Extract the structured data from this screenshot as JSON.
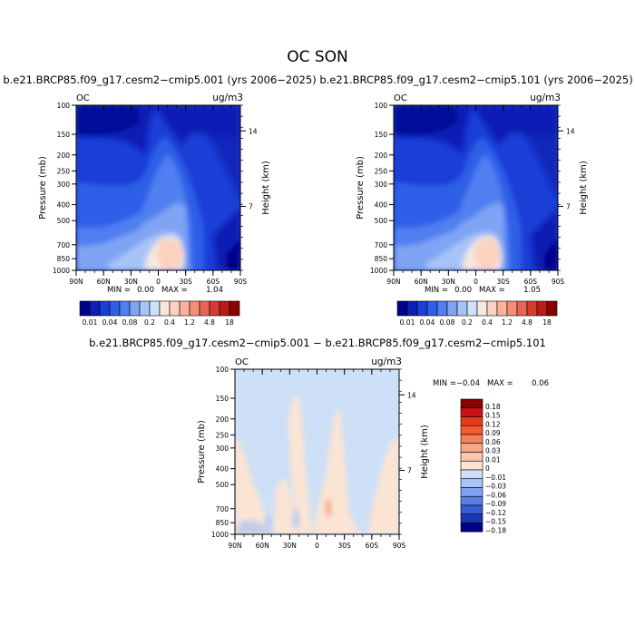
{
  "figure": {
    "title": "OC SON",
    "cb_top_labels": [
      "0.01",
      "0.04",
      "0.08",
      "0.2",
      "0.4",
      "1.2",
      "4.8",
      "18"
    ],
    "cb_top_colors": [
      "#00008b",
      "#0b1fb4",
      "#1a3ed6",
      "#2f5ee8",
      "#4f7ff0",
      "#7fa4f4",
      "#a7c4f7",
      "#cfe0fb",
      "#f6e8df",
      "#fbd2bf",
      "#f8b39a",
      "#f38f76",
      "#e86553",
      "#d63a31",
      "#bb1a18",
      "#8b0000"
    ],
    "diff_cb_labels": [
      "0.18",
      "0.15",
      "0.12",
      "0.09",
      "0.06",
      "0.03",
      "0.01",
      "0",
      "−0.01",
      "−0.03",
      "−0.06",
      "−0.09",
      "−0.12",
      "−0.15",
      "−0.18"
    ],
    "diff_cb_colors": [
      "#8b0000",
      "#c81414",
      "#e63a1e",
      "#f25a2f",
      "#f67f5c",
      "#f8a686",
      "#fac6ad",
      "#fbe4d4",
      "#cde0f7",
      "#a8c4f4",
      "#7ea2ef",
      "#577fe6",
      "#365cd8",
      "#1a36b4",
      "#00008b"
    ]
  },
  "chart_data": [
    {
      "type": "heatmap",
      "title": "b.e21.BRCP85.f09_g17.cesm2−cmip5.001 (yrs 2006−2025)",
      "var_label": "OC",
      "units": "ug/m3",
      "xlabel": "",
      "ylabel": "Pressure (mb)",
      "right_label": "Height (km)",
      "x_ticks": [
        "90N",
        "60N",
        "30N",
        "0",
        "30S",
        "60S",
        "90S"
      ],
      "x_range": [
        90,
        -90
      ],
      "y_ticks": [
        "100",
        "150",
        "200",
        "250",
        "300",
        "400",
        "500",
        "700",
        "850",
        "1000"
      ],
      "y_range": [
        100,
        1000
      ],
      "right_ticks": [
        "14",
        "7"
      ],
      "min_label": "MIN =",
      "min_value": "0.00",
      "max_label": "MAX =",
      "max_value": "1.04"
    },
    {
      "type": "heatmap",
      "title": "b.e21.BRCP85.f09_g17.cesm2−cmip5.101 (yrs 2006−2025)",
      "var_label": "OC",
      "units": "ug/m3",
      "xlabel": "",
      "ylabel": "Pressure (mb)",
      "right_label": "Height (km)",
      "x_ticks": [
        "90N",
        "60N",
        "30N",
        "0",
        "30S",
        "60S",
        "90S"
      ],
      "x_range": [
        90,
        -90
      ],
      "y_ticks": [
        "100",
        "150",
        "200",
        "250",
        "300",
        "400",
        "500",
        "700",
        "850",
        "1000"
      ],
      "y_range": [
        100,
        1000
      ],
      "right_ticks": [
        "14",
        "7"
      ],
      "min_label": "MIN =",
      "min_value": "0.00",
      "max_label": "MAX =",
      "max_value": "1.05"
    },
    {
      "type": "heatmap",
      "title": "b.e21.BRCP85.f09_g17.cesm2−cmip5.001 − b.e21.BRCP85.f09_g17.cesm2−cmip5.101",
      "var_label": "OC",
      "units": "ug/m3",
      "xlabel": "",
      "ylabel": "Pressure (mb)",
      "right_label": "Height (km)",
      "x_ticks": [
        "90N",
        "60N",
        "30N",
        "0",
        "30S",
        "60S",
        "90S"
      ],
      "x_range": [
        90,
        -90
      ],
      "y_ticks": [
        "100",
        "150",
        "200",
        "250",
        "300",
        "400",
        "500",
        "700",
        "850",
        "1000"
      ],
      "y_range": [
        100,
        1000
      ],
      "right_ticks": [
        "14",
        "7"
      ],
      "min_label": "MIN =",
      "min_value": "−0.04",
      "max_label": "MAX =",
      "max_value": "0.06"
    }
  ]
}
